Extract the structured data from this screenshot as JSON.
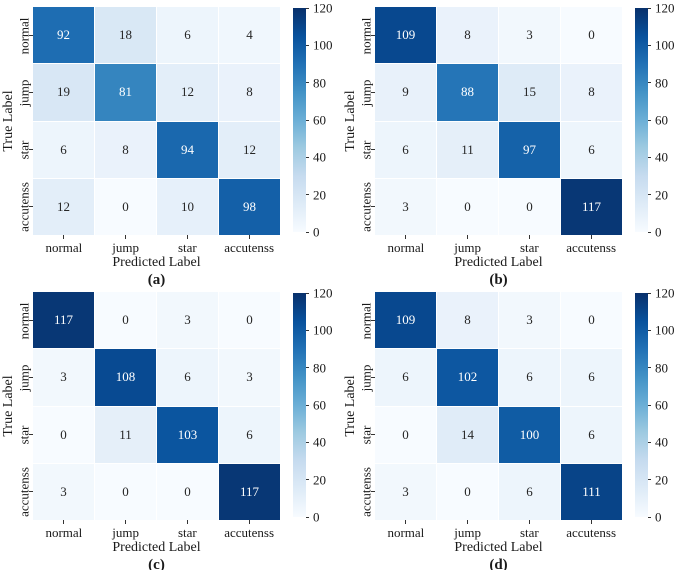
{
  "figure": {
    "background": "#ffffff",
    "axis_color": "#333333",
    "cell_text_light": "#ffffff",
    "cell_text_dark": "#262626",
    "colormap_name": "Blues",
    "colormap": [
      "#f7fbff",
      "#deebf7",
      "#c6dbef",
      "#9ecae1",
      "#6baed6",
      "#4292c6",
      "#2171b5",
      "#08519c",
      "#08306b"
    ]
  },
  "chart_data": [
    {
      "type": "heatmap",
      "caption": "(a)",
      "xlabel": "Predicted Label",
      "ylabel": "True Label",
      "x_categories": [
        "normal",
        "jump",
        "star",
        "accutenss"
      ],
      "y_categories": [
        "normal",
        "jump",
        "star",
        "accutenss"
      ],
      "matrix": [
        [
          92,
          18,
          6,
          4
        ],
        [
          19,
          81,
          12,
          8
        ],
        [
          6,
          8,
          94,
          12
        ],
        [
          12,
          0,
          10,
          98
        ]
      ],
      "vmin": 0,
      "vmax": 120,
      "colorbar_ticks": [
        0,
        20,
        40,
        60,
        80,
        100,
        120
      ],
      "legend_position": "right-colorbar",
      "grid": false
    },
    {
      "type": "heatmap",
      "caption": "(b)",
      "xlabel": "Predicted Label",
      "ylabel": "True Label",
      "x_categories": [
        "normal",
        "jump",
        "star",
        "accutenss"
      ],
      "y_categories": [
        "normal",
        "jump",
        "star",
        "accutenss"
      ],
      "matrix": [
        [
          109,
          8,
          3,
          0
        ],
        [
          9,
          88,
          15,
          8
        ],
        [
          6,
          11,
          97,
          6
        ],
        [
          3,
          0,
          0,
          117
        ]
      ],
      "vmin": 0,
      "vmax": 120,
      "colorbar_ticks": [
        0,
        20,
        40,
        60,
        80,
        100,
        120
      ],
      "legend_position": "right-colorbar",
      "grid": false
    },
    {
      "type": "heatmap",
      "caption": "(c)",
      "xlabel": "Predicted Label",
      "ylabel": "True Label",
      "x_categories": [
        "normal",
        "jump",
        "star",
        "accutenss"
      ],
      "y_categories": [
        "normal",
        "jump",
        "star",
        "accutenss"
      ],
      "matrix": [
        [
          117,
          0,
          3,
          0
        ],
        [
          3,
          108,
          6,
          3
        ],
        [
          0,
          11,
          103,
          6
        ],
        [
          3,
          0,
          0,
          117
        ]
      ],
      "vmin": 0,
      "vmax": 120,
      "colorbar_ticks": [
        0,
        20,
        40,
        60,
        80,
        100,
        120
      ],
      "legend_position": "right-colorbar",
      "grid": false
    },
    {
      "type": "heatmap",
      "caption": "(d)",
      "xlabel": "Predicted Label",
      "ylabel": "True Label",
      "x_categories": [
        "normal",
        "jump",
        "star",
        "accutenss"
      ],
      "y_categories": [
        "normal",
        "jump",
        "star",
        "accutenss"
      ],
      "matrix": [
        [
          109,
          8,
          3,
          0
        ],
        [
          6,
          102,
          6,
          6
        ],
        [
          0,
          14,
          100,
          6
        ],
        [
          3,
          0,
          6,
          111
        ]
      ],
      "vmin": 0,
      "vmax": 120,
      "colorbar_ticks": [
        0,
        20,
        40,
        60,
        80,
        100,
        120
      ],
      "legend_position": "right-colorbar",
      "grid": false
    }
  ]
}
